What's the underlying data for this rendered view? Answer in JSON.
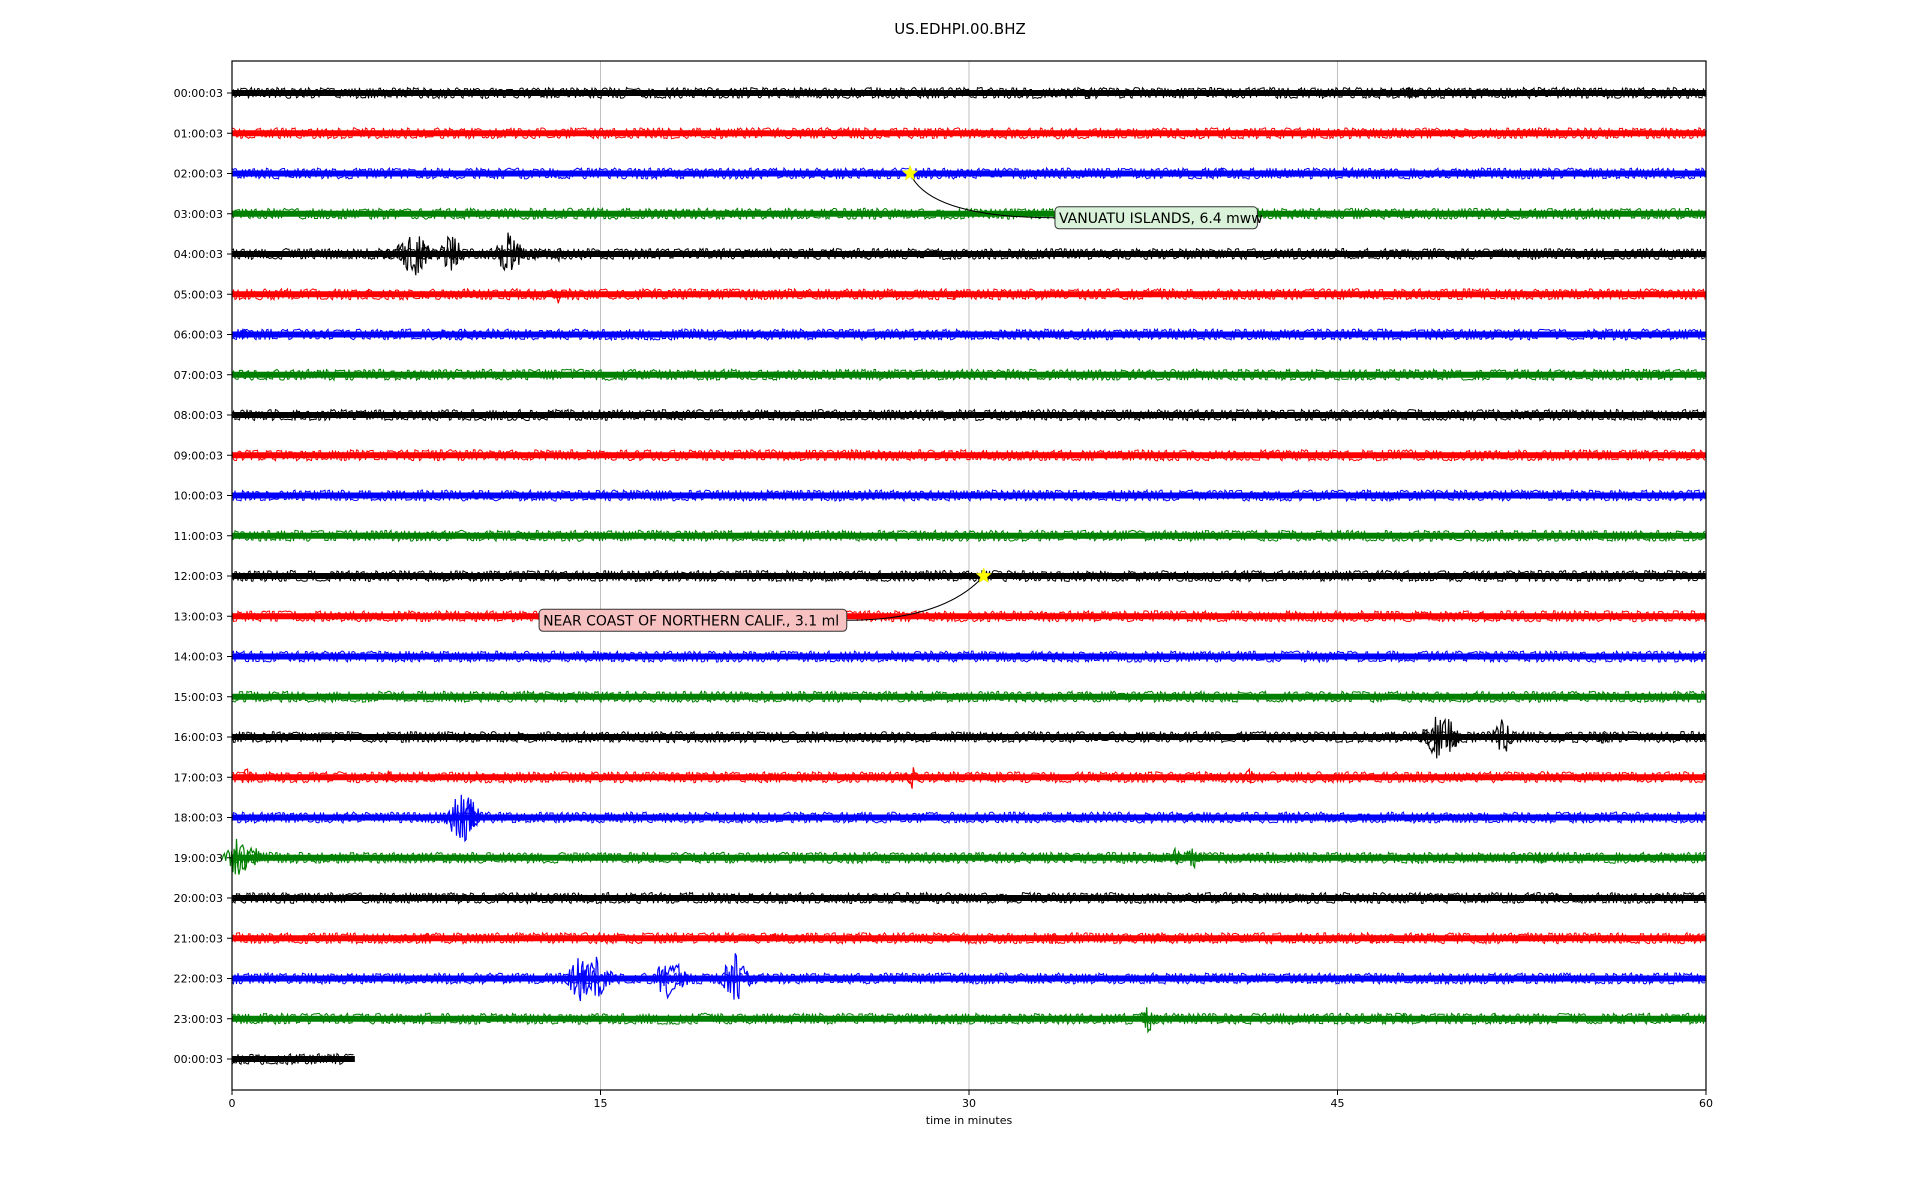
{
  "chart_data": {
    "type": "line",
    "title": "US.EDHPI.00.BHZ",
    "xlabel": "time in minutes",
    "ylabel": "",
    "xlim": [
      0,
      60
    ],
    "xticks": [
      0,
      15,
      30,
      45,
      60
    ],
    "grid": "vertical lines at x ticks",
    "row_colors": [
      "#000000",
      "#ff0000",
      "#0000ff",
      "#008000"
    ],
    "rows": [
      {
        "label": "00:00:03",
        "end": 60,
        "events": [
          [
            34.9,
            7
          ],
          [
            47.9,
            8
          ],
          [
            48.2,
            6
          ]
        ]
      },
      {
        "label": "01:00:03",
        "end": 60,
        "events": []
      },
      {
        "label": "02:00:03",
        "end": 60,
        "events": [
          [
            17.7,
            5
          ],
          [
            40.3,
            6
          ]
        ]
      },
      {
        "label": "03:00:03",
        "end": 60,
        "events": []
      },
      {
        "label": "04:00:03",
        "end": 60,
        "events": [
          [
            6.3,
            7
          ],
          [
            6.8,
            10
          ],
          [
            7.4,
            26
          ],
          [
            7.9,
            12
          ],
          [
            8.9,
            22
          ],
          [
            11.3,
            24
          ],
          [
            11.6,
            10
          ],
          [
            12.4,
            8
          ],
          [
            13.3,
            7
          ]
        ]
      },
      {
        "label": "05:00:03",
        "end": 60,
        "events": [
          [
            5.5,
            5
          ],
          [
            13.3,
            10
          ],
          [
            29.4,
            6
          ]
        ]
      },
      {
        "label": "06:00:03",
        "end": 60,
        "events": [
          [
            0.5,
            6
          ],
          [
            8.6,
            7
          ],
          [
            9.3,
            6
          ]
        ]
      },
      {
        "label": "07:00:03",
        "end": 60,
        "events": [
          [
            22.1,
            5
          ],
          [
            58.1,
            6
          ]
        ]
      },
      {
        "label": "08:00:03",
        "end": 60,
        "events": [
          [
            18.1,
            5
          ]
        ]
      },
      {
        "label": "09:00:03",
        "end": 60,
        "events": []
      },
      {
        "label": "10:00:03",
        "end": 60,
        "events": [
          [
            47.2,
            5
          ]
        ]
      },
      {
        "label": "11:00:03",
        "end": 60,
        "events": []
      },
      {
        "label": "12:00:03",
        "end": 60,
        "events": [
          [
            51.2,
            5
          ]
        ]
      },
      {
        "label": "13:00:03",
        "end": 60,
        "events": []
      },
      {
        "label": "14:00:03",
        "end": 60,
        "events": []
      },
      {
        "label": "15:00:03",
        "end": 60,
        "events": []
      },
      {
        "label": "16:00:03",
        "end": 60,
        "events": [
          [
            48.7,
            14
          ],
          [
            49.2,
            30
          ],
          [
            49.8,
            10
          ],
          [
            51.7,
            20
          ],
          [
            55.8,
            7
          ]
        ]
      },
      {
        "label": "17:00:03",
        "end": 60,
        "events": [
          [
            0.6,
            10
          ],
          [
            6.4,
            6
          ],
          [
            21.8,
            6
          ],
          [
            27.7,
            12
          ],
          [
            41.4,
            9
          ]
        ]
      },
      {
        "label": "18:00:03",
        "end": 60,
        "events": [
          [
            9.4,
            30
          ],
          [
            9.7,
            14
          ],
          [
            20.7,
            7
          ],
          [
            34.6,
            6
          ],
          [
            54.5,
            5
          ]
        ]
      },
      {
        "label": "19:00:03",
        "end": 60,
        "events": [
          [
            0.2,
            20
          ],
          [
            0.5,
            18
          ],
          [
            1.0,
            10
          ],
          [
            38.4,
            10
          ],
          [
            39.1,
            12
          ],
          [
            53.3,
            8
          ]
        ]
      },
      {
        "label": "20:00:03",
        "end": 60,
        "events": [
          [
            12.9,
            6
          ],
          [
            53.9,
            5
          ]
        ]
      },
      {
        "label": "21:00:03",
        "end": 60,
        "events": [
          [
            7.9,
            6
          ],
          [
            22.1,
            6
          ],
          [
            33.4,
            7
          ],
          [
            37.7,
            6
          ],
          [
            46.4,
            5
          ]
        ]
      },
      {
        "label": "22:00:03",
        "end": 60,
        "events": [
          [
            14.2,
            26
          ],
          [
            14.8,
            28
          ],
          [
            17.7,
            22
          ],
          [
            18.1,
            20
          ],
          [
            20.5,
            26
          ],
          [
            40.2,
            6
          ]
        ]
      },
      {
        "label": "23:00:03",
        "end": 60,
        "events": [
          [
            37.3,
            14
          ],
          [
            47.7,
            6
          ],
          [
            51.4,
            5
          ]
        ]
      },
      {
        "label": "00:00:03",
        "end": 5,
        "events": []
      }
    ],
    "annotations": [
      {
        "text": "VANUATU ISLANDS, 6.4 mww",
        "row": 2,
        "x": 27.6,
        "label_x": 33.5,
        "label_row": 3.1,
        "face": "#d9f2d9"
      },
      {
        "text": "NEAR COAST OF NORTHERN CALIF., 3.1 ml",
        "row": 12,
        "x": 30.6,
        "label_x": 12.5,
        "label_row": 13.1,
        "face": "#f7c1c1"
      }
    ]
  }
}
